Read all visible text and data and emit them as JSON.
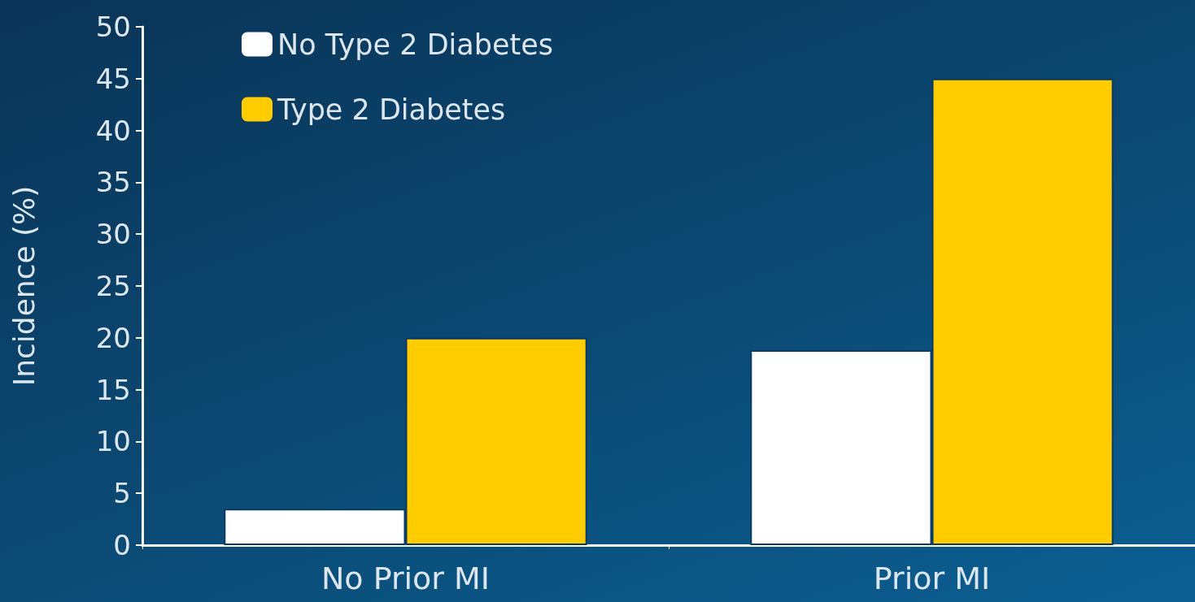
{
  "chart_data": {
    "type": "bar",
    "ylabel": "Incidence (%)",
    "categories": [
      "No Prior MI",
      "Prior MI"
    ],
    "series": [
      {
        "name": "No Type 2 Diabetes",
        "color": "#ffffff",
        "values": [
          3.5,
          18.8
        ]
      },
      {
        "name": "Type 2 Diabetes",
        "color": "#ffcc00",
        "values": [
          20,
          45
        ]
      }
    ],
    "ylim": [
      0,
      50
    ],
    "yticks": [
      0,
      5,
      10,
      15,
      20,
      25,
      30,
      35,
      40,
      45,
      50
    ],
    "grid": false,
    "legend": "top left"
  }
}
